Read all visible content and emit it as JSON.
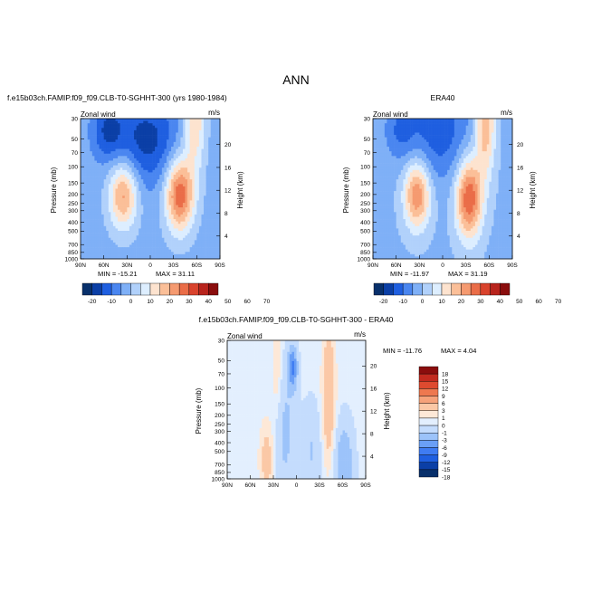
{
  "page_title": "ANN",
  "colors": {
    "seq14": [
      "#08306b",
      "#0b3fa6",
      "#1f5fe0",
      "#4a86f0",
      "#7fb0f7",
      "#b1d1fb",
      "#ddeeff",
      "#fde3cf",
      "#fbbf98",
      "#f59a70",
      "#ea6d48",
      "#d9432d",
      "#b8241d",
      "#8a0d0d"
    ],
    "diff15": [
      "#08306b",
      "#0b3fa6",
      "#1f5fe0",
      "#3f7cf2",
      "#6a9ff6",
      "#9cc3fa",
      "#c4dcfd",
      "#e3effe",
      "#fde8d7",
      "#fbc8a6",
      "#f6a27a",
      "#ee784f",
      "#de4a2f",
      "#c22a1f",
      "#8a0d0d"
    ]
  },
  "chart_data": [
    {
      "type": "heatmap",
      "title": "f.e15b03ch.FAMIP.f09_f09.CLB-T0-SGHHT-300 (yrs 1980-1984)",
      "variable_label": "Zonal wind",
      "units": "m/s",
      "ylabel": "Pressure (mb)",
      "ylabel_right": "Height (km)",
      "x_ticks": [
        "90N",
        "60N",
        "30N",
        "0",
        "30S",
        "60S",
        "90S"
      ],
      "y_ticks": [
        "30",
        "50",
        "70",
        "100",
        "150",
        "200",
        "250",
        "300",
        "400",
        "500",
        "700",
        "850",
        "1000"
      ],
      "y_right_ticks": [
        "20",
        "16",
        "12",
        "8",
        "4"
      ],
      "min_text": "MIN = -15.21",
      "max_text": "MAX = 31.11",
      "min": -15.21,
      "max": 31.11,
      "colorbar_labels": [
        "-20",
        "-10",
        "0",
        "10",
        "20",
        "30",
        "40",
        "50",
        "60",
        "70"
      ],
      "features": [
        {
          "lat": 35,
          "pressure": 200,
          "value": 24
        },
        {
          "lat": -38,
          "pressure": 200,
          "value": 31
        },
        {
          "lat": -55,
          "pressure": 30,
          "value": 18
        },
        {
          "lat": 5,
          "pressure": 50,
          "value": -15
        },
        {
          "lat": 55,
          "pressure": 40,
          "value": -12
        }
      ]
    },
    {
      "type": "heatmap",
      "title": "ERA40",
      "variable_label": "Zonal wind",
      "units": "m/s",
      "ylabel": "Pressure (mb)",
      "ylabel_right": "Height (km)",
      "x_ticks": [
        "90N",
        "60N",
        "30N",
        "0",
        "30S",
        "60S",
        "90S"
      ],
      "y_ticks": [
        "30",
        "50",
        "70",
        "100",
        "150",
        "200",
        "250",
        "300",
        "400",
        "500",
        "700",
        "850",
        "1000"
      ],
      "y_right_ticks": [
        "20",
        "16",
        "12",
        "8",
        "4"
      ],
      "min_text": "MIN = -11.97",
      "max_text": "MAX = 31.19",
      "min": -11.97,
      "max": 31.19,
      "colorbar_labels": [
        "-20",
        "-10",
        "0",
        "10",
        "20",
        "30",
        "40",
        "50",
        "60",
        "70"
      ],
      "features": [
        {
          "lat": 33,
          "pressure": 200,
          "value": 26
        },
        {
          "lat": -32,
          "pressure": 200,
          "value": 31
        },
        {
          "lat": -55,
          "pressure": 30,
          "value": 21
        },
        {
          "lat": 5,
          "pressure": 40,
          "value": -12
        }
      ]
    },
    {
      "type": "heatmap",
      "title": "f.e15b03ch.FAMIP.f09_f09.CLB-T0-SGHHT-300 - ERA40",
      "variable_label": "Zonal wind",
      "units": "m/s",
      "ylabel": "Pressure (mb)",
      "ylabel_right": "Height (km)",
      "x_ticks": [
        "90N",
        "60N",
        "30N",
        "0",
        "30S",
        "60S",
        "90S"
      ],
      "y_ticks": [
        "30",
        "50",
        "70",
        "100",
        "150",
        "200",
        "250",
        "300",
        "400",
        "500",
        "700",
        "850",
        "1000"
      ],
      "y_right_ticks": [
        "20",
        "16",
        "12",
        "8",
        "4"
      ],
      "min_text": "MIN = -11.76",
      "max_text": "MAX =    4.04",
      "min": -11.76,
      "max": 4.04,
      "colorbar_labels": [
        "18",
        "15",
        "12",
        "9",
        "6",
        "3",
        "1",
        "0",
        "-1",
        "-3",
        "-6",
        "-9",
        "-12",
        "-15",
        "-18"
      ],
      "features": [
        {
          "lat": 5,
          "pressure": 50,
          "value": -11
        },
        {
          "lat": -40,
          "pressure": 100,
          "value": 4
        },
        {
          "lat": 40,
          "pressure": 600,
          "value": 2
        },
        {
          "lat": -60,
          "pressure": 800,
          "value": -5
        }
      ]
    }
  ]
}
